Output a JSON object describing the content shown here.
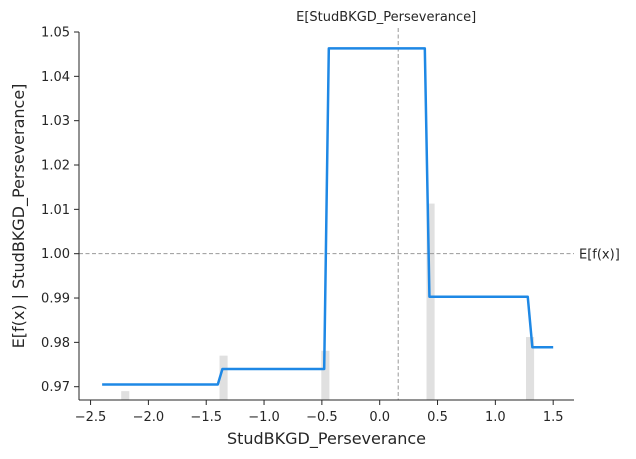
{
  "chart_data": {
    "type": "line",
    "title": "",
    "xlabel": "StudBKGD_Perseverance",
    "ylabel": "E[f(x) | StudBKGD_Perseverance]",
    "xlim": [
      -2.6,
      1.68
    ],
    "ylim": [
      0.967,
      1.05
    ],
    "x_ticks": [
      -2.5,
      -2.0,
      -1.5,
      -1.0,
      -0.5,
      0.0,
      0.5,
      1.0,
      1.5
    ],
    "x_tick_labels": [
      "−2.5",
      "−2.0",
      "−1.5",
      "−1.0",
      "−0.5",
      "0.0",
      "0.5",
      "1.0",
      "1.5"
    ],
    "y_ticks": [
      0.97,
      0.98,
      0.99,
      1.0,
      1.01,
      1.02,
      1.03,
      1.04,
      1.05
    ],
    "y_tick_labels": [
      "0.97",
      "0.98",
      "0.99",
      "1.00",
      "1.01",
      "1.02",
      "1.03",
      "1.04",
      "1.05"
    ],
    "series": [
      {
        "color": "#1e88e5",
        "x": [
          -2.4,
          -1.4,
          -1.36,
          -0.48,
          -0.44,
          0.39,
          0.43,
          1.28,
          1.32,
          1.5
        ],
        "y": [
          0.9705,
          0.9705,
          0.974,
          0.974,
          1.0463,
          1.0463,
          0.9903,
          0.9903,
          0.9789,
          0.9789
        ]
      }
    ],
    "histogram": {
      "color": "#e0e0e0",
      "bar_width": 0.07,
      "x": [
        -2.2,
        -1.35,
        -0.47,
        0.44,
        1.3
      ],
      "y": [
        0.969,
        0.977,
        0.9781,
        1.0113,
        0.9812
      ]
    },
    "reference_lines": {
      "expected_value_y": 1.0,
      "expected_value_label": "E[f(x)]",
      "expected_feature_x": 0.16,
      "expected_feature_label": "E[StudBKGD_Perseverance]",
      "color": "#999999"
    },
    "grid": false,
    "legend": "none"
  }
}
